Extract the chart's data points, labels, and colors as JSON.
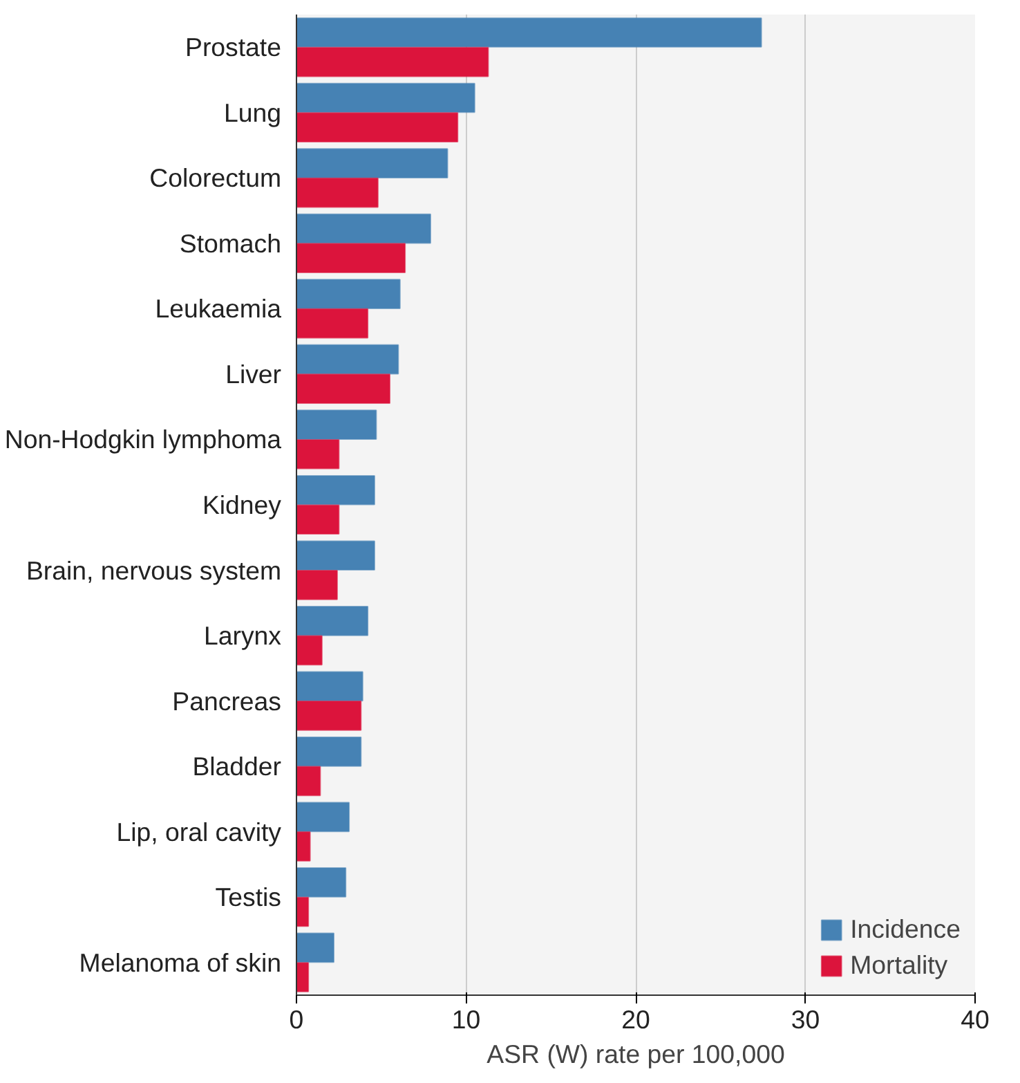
{
  "chart_data": {
    "type": "bar",
    "orientation": "horizontal",
    "xlabel": "ASR (W) rate per 100,000",
    "categories": [
      "Prostate",
      "Lung",
      "Colorectum",
      "Stomach",
      "Leukaemia",
      "Liver",
      "Non-Hodgkin lymphoma",
      "Kidney",
      "Brain, nervous system",
      "Larynx",
      "Pancreas",
      "Bladder",
      "Lip, oral cavity",
      "Testis",
      "Melanoma of skin"
    ],
    "series": [
      {
        "name": "Incidence",
        "color": "#4682b4",
        "values": [
          27.4,
          10.5,
          8.9,
          7.9,
          6.1,
          6.0,
          4.7,
          4.6,
          4.6,
          4.2,
          3.9,
          3.8,
          3.1,
          2.9,
          2.2
        ]
      },
      {
        "name": "Mortality",
        "color": "#dc143c",
        "values": [
          11.3,
          9.5,
          4.8,
          6.4,
          4.2,
          5.5,
          2.5,
          2.5,
          2.4,
          1.5,
          3.8,
          1.4,
          0.8,
          0.7,
          0.7
        ]
      }
    ],
    "xlim": [
      0,
      40
    ],
    "xticks": [
      0,
      10,
      20,
      30,
      40
    ],
    "grid": "x",
    "legend": "bottom right"
  }
}
